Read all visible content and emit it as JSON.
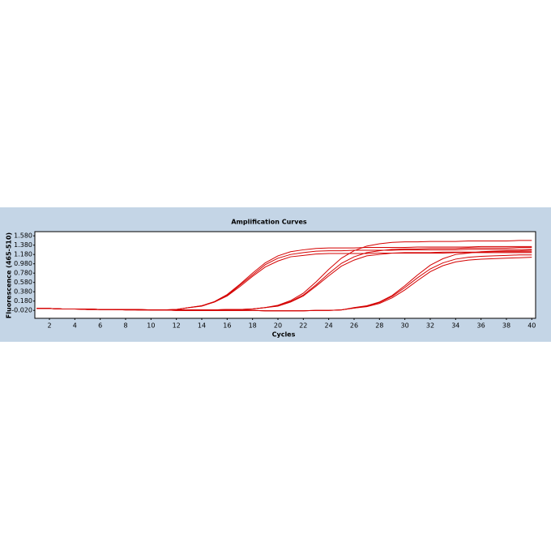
{
  "chart_data": {
    "type": "line",
    "title": "Amplification Curves",
    "x_label": "Cycles",
    "y_label": "Fluorescence (465-510)",
    "x": [
      1,
      2,
      3,
      4,
      5,
      6,
      7,
      8,
      9,
      10,
      11,
      12,
      13,
      14,
      15,
      16,
      17,
      18,
      19,
      20,
      21,
      22,
      23,
      24,
      25,
      26,
      27,
      28,
      29,
      30,
      31,
      32,
      33,
      34,
      35,
      36,
      37,
      38,
      39,
      40
    ],
    "xlim": [
      0.85,
      40.3
    ],
    "xticks": [
      2,
      4,
      6,
      8,
      10,
      12,
      14,
      16,
      18,
      20,
      22,
      24,
      26,
      28,
      30,
      32,
      34,
      36,
      38,
      40
    ],
    "ylim": [
      -0.19,
      1.67
    ],
    "yticks": [
      {
        "value": -0.02,
        "label": "-0.020"
      },
      {
        "value": 0.18,
        "label": "0.180"
      },
      {
        "value": 0.38,
        "label": "0.380"
      },
      {
        "value": 0.58,
        "label": "0.580"
      },
      {
        "value": 0.78,
        "label": "0.780"
      },
      {
        "value": 0.98,
        "label": "0.980"
      },
      {
        "value": 1.18,
        "label": "1.180"
      },
      {
        "value": 1.38,
        "label": "1.380"
      },
      {
        "value": 1.58,
        "label": "1.580"
      }
    ],
    "grid": false,
    "series": [
      {
        "color": "#d40000",
        "values": [
          0.02,
          0.02,
          0.01,
          0.01,
          0.01,
          0.0,
          0.0,
          0.0,
          -0.01,
          -0.01,
          -0.01,
          0.0,
          0.04,
          0.08,
          0.17,
          0.32,
          0.54,
          0.78,
          1.0,
          1.15,
          1.24,
          1.28,
          1.31,
          1.32,
          1.32,
          1.32,
          1.33,
          1.33,
          1.33,
          1.33,
          1.34,
          1.34,
          1.34,
          1.34,
          1.34,
          1.35,
          1.35,
          1.35,
          1.35,
          1.35
        ]
      },
      {
        "color": "#d40000",
        "values": [
          0.02,
          0.02,
          0.01,
          0.01,
          0.01,
          0.0,
          0.0,
          0.0,
          -0.01,
          -0.01,
          -0.01,
          0.0,
          0.04,
          0.07,
          0.16,
          0.29,
          0.49,
          0.71,
          0.91,
          1.04,
          1.13,
          1.16,
          1.19,
          1.2,
          1.2,
          1.2,
          1.2,
          1.21,
          1.21,
          1.21,
          1.21,
          1.21,
          1.21,
          1.22,
          1.22,
          1.22,
          1.22,
          1.22,
          1.22,
          1.22
        ]
      },
      {
        "color": "#d40000",
        "values": [
          0.02,
          0.02,
          0.01,
          0.01,
          0.01,
          0.0,
          0.0,
          0.0,
          -0.01,
          -0.01,
          -0.01,
          0.0,
          0.04,
          0.08,
          0.16,
          0.3,
          0.52,
          0.74,
          0.96,
          1.1,
          1.18,
          1.22,
          1.25,
          1.26,
          1.26,
          1.27,
          1.27,
          1.27,
          1.27,
          1.28,
          1.28,
          1.28,
          1.28,
          1.28,
          1.29,
          1.29,
          1.29,
          1.29,
          1.29,
          1.29
        ]
      },
      {
        "color": "#d40000",
        "values": [
          0.02,
          0.02,
          0.01,
          0.01,
          0.01,
          0.0,
          0.0,
          0.0,
          0.0,
          -0.01,
          -0.01,
          -0.01,
          -0.01,
          -0.01,
          -0.01,
          0.0,
          0.0,
          0.01,
          0.04,
          0.09,
          0.19,
          0.35,
          0.59,
          0.86,
          1.1,
          1.26,
          1.36,
          1.41,
          1.44,
          1.45,
          1.45,
          1.46,
          1.46,
          1.46,
          1.47,
          1.47,
          1.47,
          1.47,
          1.48,
          1.48
        ]
      },
      {
        "color": "#d40000",
        "values": [
          0.02,
          0.02,
          0.01,
          0.01,
          0.01,
          0.0,
          0.0,
          0.0,
          0.0,
          -0.01,
          -0.01,
          -0.01,
          -0.01,
          -0.01,
          -0.01,
          0.0,
          0.0,
          0.01,
          0.04,
          0.07,
          0.16,
          0.29,
          0.5,
          0.72,
          0.93,
          1.06,
          1.15,
          1.18,
          1.21,
          1.22,
          1.22,
          1.22,
          1.23,
          1.23,
          1.23,
          1.23,
          1.24,
          1.24,
          1.24,
          1.24
        ]
      },
      {
        "color": "#d40000",
        "values": [
          0.02,
          0.02,
          0.01,
          0.01,
          0.01,
          0.0,
          0.0,
          0.0,
          0.0,
          -0.01,
          -0.01,
          -0.01,
          -0.01,
          -0.01,
          -0.01,
          0.0,
          0.0,
          0.01,
          0.04,
          0.08,
          0.17,
          0.31,
          0.53,
          0.77,
          0.99,
          1.13,
          1.22,
          1.26,
          1.29,
          1.3,
          1.3,
          1.31,
          1.31,
          1.31,
          1.32,
          1.32,
          1.32,
          1.32,
          1.33,
          1.33
        ]
      },
      {
        "color": "#d40000",
        "values": [
          0.02,
          0.02,
          0.01,
          0.01,
          0.0,
          0.0,
          0.0,
          -0.01,
          -0.01,
          -0.01,
          -0.01,
          -0.02,
          -0.02,
          -0.02,
          -0.02,
          -0.02,
          -0.02,
          -0.02,
          -0.03,
          -0.03,
          -0.03,
          -0.03,
          -0.02,
          -0.02,
          -0.01,
          0.04,
          0.08,
          0.16,
          0.3,
          0.51,
          0.74,
          0.95,
          1.09,
          1.18,
          1.21,
          1.24,
          1.25,
          1.26,
          1.26,
          1.27
        ]
      },
      {
        "color": "#d40000",
        "values": [
          0.02,
          0.02,
          0.01,
          0.01,
          0.0,
          0.0,
          0.0,
          -0.01,
          -0.01,
          -0.01,
          -0.01,
          -0.02,
          -0.02,
          -0.02,
          -0.02,
          -0.02,
          -0.02,
          -0.02,
          -0.03,
          -0.03,
          -0.03,
          -0.03,
          -0.02,
          -0.02,
          -0.01,
          0.03,
          0.07,
          0.15,
          0.28,
          0.47,
          0.68,
          0.87,
          1.0,
          1.08,
          1.12,
          1.14,
          1.15,
          1.16,
          1.17,
          1.17
        ]
      },
      {
        "color": "#d40000",
        "values": [
          0.02,
          0.02,
          0.01,
          0.01,
          0.0,
          0.0,
          0.0,
          -0.01,
          -0.01,
          -0.01,
          -0.01,
          -0.02,
          -0.02,
          -0.02,
          -0.02,
          -0.02,
          -0.02,
          -0.02,
          -0.03,
          -0.03,
          -0.03,
          -0.03,
          -0.02,
          -0.02,
          -0.01,
          0.03,
          0.06,
          0.13,
          0.25,
          0.42,
          0.62,
          0.81,
          0.94,
          1.02,
          1.06,
          1.08,
          1.09,
          1.1,
          1.11,
          1.12
        ]
      }
    ]
  }
}
